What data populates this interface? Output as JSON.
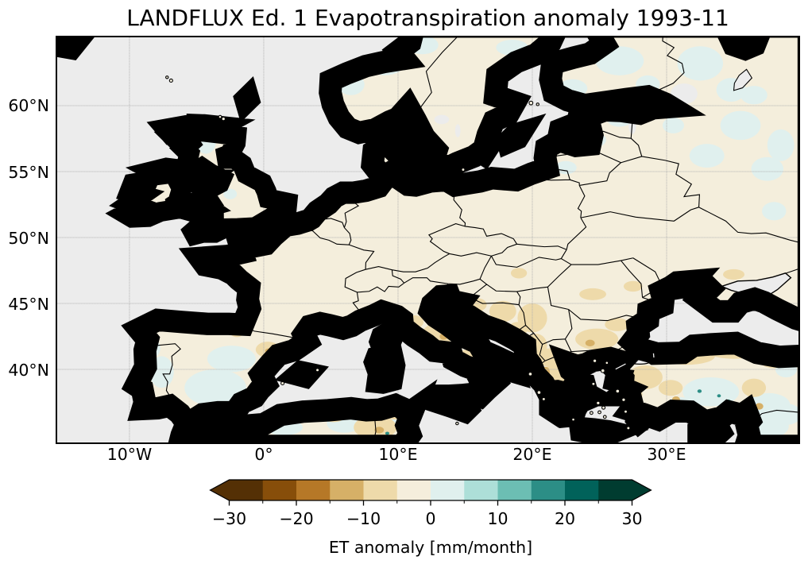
{
  "title": "LANDFLUX Ed. 1 Evapotranspiration anomaly 1993-11",
  "map": {
    "sea_color": "#ececec",
    "land_base_color": "#f4eedc",
    "grid_color": "#b0b0b0",
    "coast_color": "#000000",
    "y_axis": {
      "tick_labels": [
        "60°N",
        "55°N",
        "50°N",
        "45°N",
        "40°N"
      ]
    },
    "x_axis": {
      "tick_labels": [
        "10°W",
        "0°",
        "10°E",
        "20°E",
        "30°E"
      ]
    }
  },
  "colorbar": {
    "label": "ET anomaly [mm/month]",
    "tick_labels": [
      "−30",
      "−20",
      "−10",
      "0",
      "10",
      "20",
      "30"
    ],
    "ticks": [
      -30,
      -20,
      -10,
      0,
      10,
      20,
      30
    ],
    "vmin": -30,
    "vmax": 30,
    "n_segments": 12,
    "segment_width": 5,
    "extend": "both",
    "colors": [
      "#543005",
      "#874e0a",
      "#b67827",
      "#d6b067",
      "#eedaaa",
      "#f5eedc",
      "#e0f0ee",
      "#addfd8",
      "#6cbeb3",
      "#2c8e86",
      "#01625a",
      "#003c30"
    ]
  },
  "chart_data": {
    "type": "heatmap",
    "title": "LANDFLUX Ed. 1 Evapotranspiration anomaly 1993-11",
    "variable": "ET anomaly",
    "units": "mm/month",
    "dataset": "LANDFLUX Ed. 1",
    "period": "1993-11",
    "colormap": "BrBG diverging, 12 discrete classes of 5 mm/month, extended arrows both ends",
    "value_range": [
      -30,
      30
    ],
    "colorbar_ticks": [
      -30,
      -20,
      -10,
      0,
      10,
      20,
      30
    ],
    "extent": {
      "lon": [
        -15.4,
        39.8
      ],
      "lat": [
        34.5,
        65.2
      ]
    },
    "gridlines": {
      "lon": [
        -10,
        0,
        10,
        20,
        30
      ],
      "lat": [
        40,
        45,
        50,
        55,
        60
      ],
      "style": "gray dashed"
    },
    "legend_position": "bottom horizontal colorbar",
    "regional_anomalies_mm_per_month": [
      {
        "region": "Most European land areas",
        "anomaly": "0 to -5 (pale cream base)"
      },
      {
        "region": "Central and eastern Spain, inner Portugal",
        "anomaly": "0 to +5 (pale blue-green)"
      },
      {
        "region": "Greece, Albania, southern Balkans",
        "anomaly": "-5 to -10, local spots -10 to -20"
      },
      {
        "region": "Bulgaria and Serbia/Bosnia patches",
        "anomaly": "-5 to -10"
      },
      {
        "region": "Northern Turkey along Black Sea coast",
        "anomaly": "-5 to -10"
      },
      {
        "region": "Central Anatolia and SE Turkey / Syria",
        "anomaly": "0 to +5 with isolated +10 to +20 specks"
      },
      {
        "region": "Norwegian coast, Finland, Baltics, NW Russia",
        "anomaly": "0 to +5 patches"
      },
      {
        "region": "Central Italy (Apennines)",
        "anomaly": "-5 to -10 patches"
      },
      {
        "region": "NE Spain (Ebro area)",
        "anomaly": "isolated -10 to -20 specks"
      },
      {
        "region": "North Africa (Morocco to Tunisia)",
        "anomaly": "mixed 0 to +5 and -5 to -10"
      },
      {
        "region": "Oceans and seas",
        "anomaly": "no data (gray)"
      }
    ]
  }
}
